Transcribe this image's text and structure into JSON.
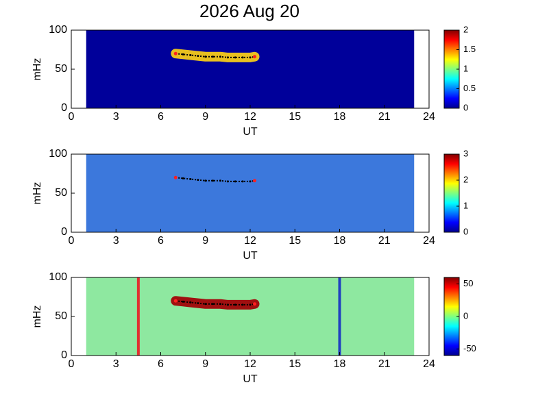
{
  "chart_data": [
    {
      "type": "heatmap",
      "title": "2026 Aug 20",
      "xlabel": "UT",
      "ylabel": "mHz",
      "xlim": [
        0,
        24
      ],
      "xticks": [
        0,
        3,
        6,
        9,
        12,
        15,
        18,
        21,
        24
      ],
      "ylim": [
        0,
        100
      ],
      "yticks": [
        0,
        50,
        100
      ],
      "clim": [
        0,
        2
      ],
      "cticks": [
        0,
        0.5,
        1,
        1.5,
        2
      ],
      "background": "#00009a",
      "data_xrange": [
        1,
        23
      ],
      "track_color": "#e8c020",
      "track": {
        "x": [
          7,
          7.5,
          8,
          8.5,
          9,
          9.5,
          10,
          10.5,
          11,
          11.5,
          12,
          12.3
        ],
        "values": [
          70,
          69,
          68,
          67,
          66,
          66,
          66,
          65,
          65,
          65,
          65,
          66
        ]
      }
    },
    {
      "type": "heatmap",
      "xlabel": "UT",
      "ylabel": "mHz",
      "xlim": [
        0,
        24
      ],
      "xticks": [
        0,
        3,
        6,
        9,
        12,
        15,
        18,
        21,
        24
      ],
      "ylim": [
        0,
        100
      ],
      "yticks": [
        0,
        50,
        100
      ],
      "clim": [
        0,
        3
      ],
      "cticks": [
        0,
        1,
        2,
        3
      ],
      "background": "#3c78dc",
      "data_xrange": [
        1,
        23
      ],
      "track": {
        "x": [
          7,
          7.5,
          8,
          8.5,
          9,
          9.5,
          10,
          10.5,
          11,
          11.5,
          12,
          12.3
        ],
        "values": [
          70,
          69,
          68,
          67,
          66,
          66,
          66,
          65,
          65,
          65,
          65,
          66
        ]
      }
    },
    {
      "type": "heatmap",
      "xlabel": "UT",
      "ylabel": "mHz",
      "xlim": [
        0,
        24
      ],
      "xticks": [
        0,
        3,
        6,
        9,
        12,
        15,
        18,
        21,
        24
      ],
      "ylim": [
        0,
        100
      ],
      "yticks": [
        0,
        50,
        100
      ],
      "clim": [
        -60,
        60
      ],
      "cticks": [
        -50,
        0,
        50
      ],
      "background": "#8ee8a0",
      "data_xrange": [
        1,
        23
      ],
      "track_color": "#a01010",
      "vlines": [
        {
          "x": 4.5,
          "color": "#e03030"
        },
        {
          "x": 18,
          "color": "#2040c0"
        }
      ],
      "track": {
        "x": [
          7,
          7.5,
          8,
          8.5,
          9,
          9.5,
          10,
          10.5,
          11,
          11.5,
          12,
          12.3
        ],
        "values": [
          70,
          69,
          68,
          67,
          66,
          66,
          66,
          65,
          65,
          65,
          65,
          66
        ]
      }
    }
  ]
}
